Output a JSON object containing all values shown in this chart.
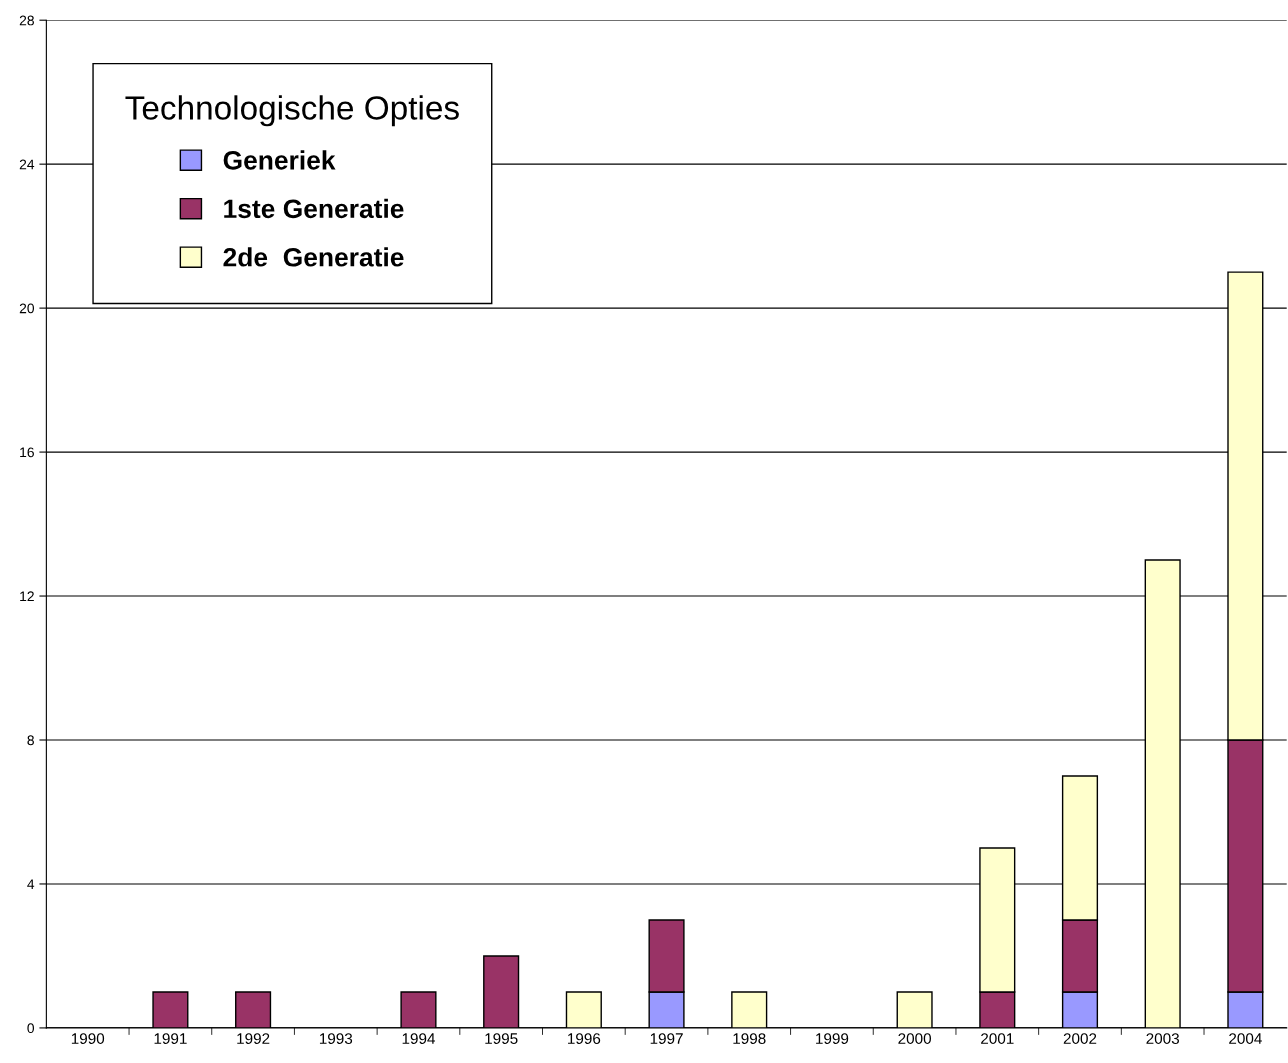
{
  "chart_data": {
    "type": "bar",
    "stacked": true,
    "categories": [
      "1990",
      "1991",
      "1992",
      "1993",
      "1994",
      "1995",
      "1996",
      "1997",
      "1998",
      "1999",
      "2000",
      "2001",
      "2002",
      "2003",
      "2004"
    ],
    "series": [
      {
        "name": "Generiek",
        "color": "#9999ff",
        "values": [
          0,
          0,
          0,
          0,
          0,
          0,
          0,
          1,
          0,
          0,
          0,
          0,
          1,
          0,
          1
        ]
      },
      {
        "name": "1ste Generatie",
        "color": "#993366",
        "values": [
          0,
          1,
          1,
          0,
          1,
          2,
          0,
          2,
          0,
          0,
          0,
          1,
          2,
          0,
          7
        ]
      },
      {
        "name": "2de  Generatie",
        "color": "#ffffcc",
        "values": [
          0,
          0,
          0,
          0,
          0,
          0,
          1,
          0,
          1,
          0,
          1,
          4,
          4,
          13,
          13
        ]
      }
    ],
    "legend_title": "Technologische Opties",
    "legend": "top left",
    "ylim": [
      0,
      28
    ],
    "yticks": [
      0,
      4,
      8,
      12,
      16,
      20,
      24,
      28
    ],
    "grid": "y"
  }
}
